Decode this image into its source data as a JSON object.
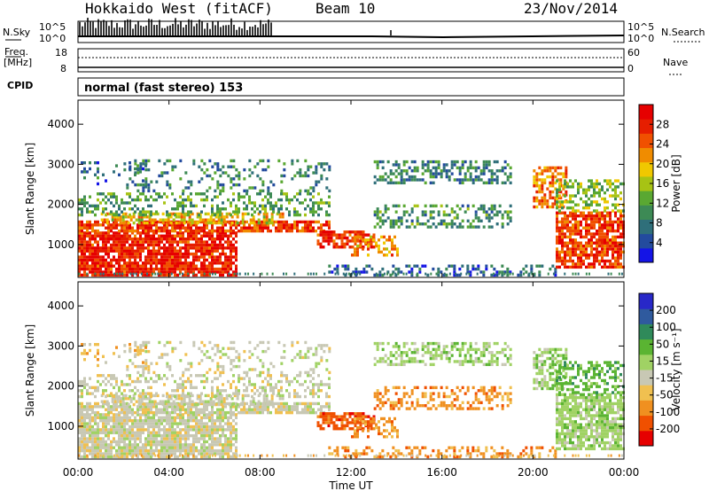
{
  "header": {
    "station": "Hokkaido West (fitACF)",
    "beam": "Beam 10",
    "date": "23/Nov/2014"
  },
  "noise_panel": {
    "left_label": "N.Sky",
    "right_label": "N.Search",
    "left_ticks": [
      "10^5",
      "10^0"
    ],
    "right_ticks": [
      "10^5",
      "10^0"
    ]
  },
  "freq_panel": {
    "left_label_1": "Freq.",
    "left_label_2": "[MHz]",
    "right_label": "Nave",
    "left_ticks": [
      "18",
      "8"
    ],
    "right_ticks": [
      "60",
      "0"
    ]
  },
  "cpid_panel": {
    "label": "CPID",
    "mode_text": "normal (fast stereo) 153"
  },
  "chart_data": [
    {
      "type": "heatmap",
      "parameter": "power",
      "ylabel": "Slant Range [km]",
      "yticks": [
        "4000",
        "3000",
        "2000",
        "1000"
      ],
      "ylim": [
        180,
        4600
      ],
      "xlim": [
        "00:00",
        "24:00"
      ],
      "colorbar": {
        "label": "Power [dB]",
        "ticks": [
          "28",
          "24",
          "20",
          "16",
          "12",
          "8",
          "4"
        ],
        "range": [
          0,
          30
        ],
        "colors": [
          "#1414e6",
          "#234b9e",
          "#2f6f7a",
          "#3d8a55",
          "#5aa832",
          "#a7c314",
          "#f0c800",
          "#f08c00",
          "#f05000",
          "#e61e00",
          "#e60000"
        ]
      }
    },
    {
      "type": "heatmap",
      "parameter": "velocity",
      "ylabel": "Slant Range [km]",
      "yticks": [
        "4000",
        "3000",
        "2000",
        "1000"
      ],
      "ylim": [
        180,
        4600
      ],
      "xlim": [
        "00:00",
        "24:00"
      ],
      "colorbar": {
        "label": "Velocity [m s⁻¹]",
        "ticks": [
          "200",
          "100",
          "50",
          "15",
          "-15",
          "-50",
          "-100",
          "-200"
        ],
        "colors": [
          "#2828c8",
          "#2f5a9e",
          "#2f8a5a",
          "#5ab432",
          "#a0d264",
          "#c8c8b4",
          "#f0c050",
          "#f09020",
          "#f05000",
          "#e60000"
        ]
      }
    }
  ],
  "xaxis": {
    "ticks": [
      "00:00",
      "04:00",
      "08:00",
      "12:00",
      "16:00",
      "20:00",
      "00:00"
    ],
    "label": "Time UT"
  }
}
